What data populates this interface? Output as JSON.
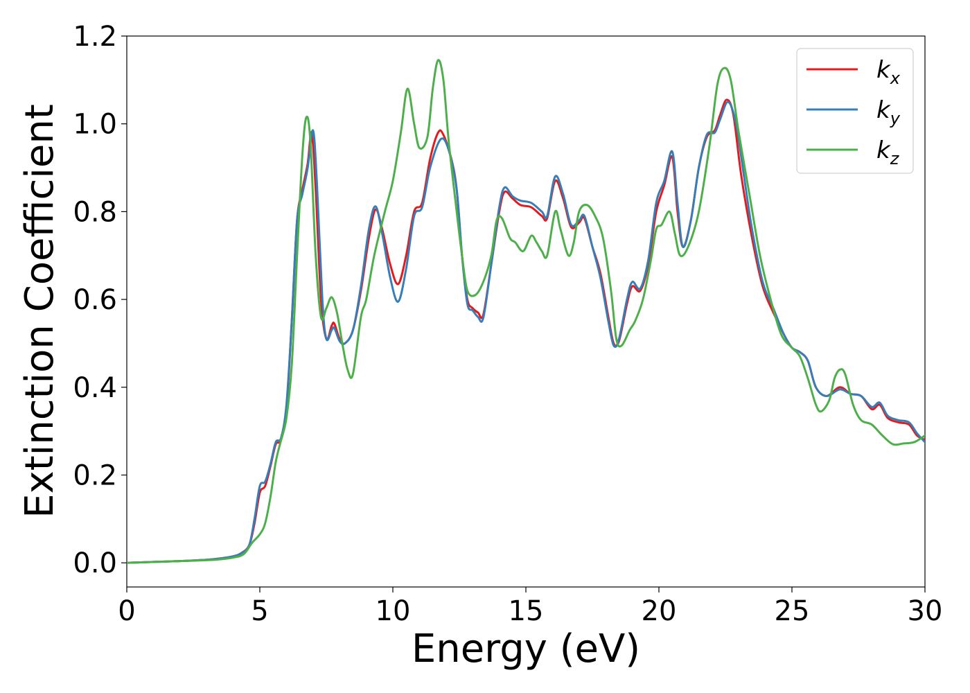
{
  "chart_data": {
    "type": "line",
    "xlabel": "Energy (eV)",
    "ylabel": "Extinction Coefficient",
    "xlim": [
      0,
      30
    ],
    "ylim": [
      -0.055,
      1.2
    ],
    "xticks": [
      0,
      5,
      10,
      15,
      20,
      25,
      30
    ],
    "yticks": [
      0.0,
      0.2,
      0.4,
      0.6,
      0.8,
      1.0,
      1.2
    ],
    "xtick_labels": [
      "0",
      "5",
      "10",
      "15",
      "20",
      "25",
      "30"
    ],
    "ytick_labels": [
      "0.0",
      "0.2",
      "0.4",
      "0.6",
      "0.8",
      "1.0",
      "1.2"
    ],
    "grid": false,
    "legend_position": "top-right",
    "series": [
      {
        "name": "k_x",
        "label_main": "k",
        "label_sub": "x",
        "color": "#e41a1c",
        "points": [
          [
            0,
            0
          ],
          [
            1,
            0.002
          ],
          [
            2,
            0.004
          ],
          [
            3,
            0.007
          ],
          [
            3.5,
            0.01
          ],
          [
            4,
            0.015
          ],
          [
            4.3,
            0.022
          ],
          [
            4.6,
            0.04
          ],
          [
            4.8,
            0.09
          ],
          [
            5.0,
            0.16
          ],
          [
            5.2,
            0.175
          ],
          [
            5.4,
            0.22
          ],
          [
            5.6,
            0.27
          ],
          [
            5.8,
            0.28
          ],
          [
            6.0,
            0.35
          ],
          [
            6.2,
            0.55
          ],
          [
            6.4,
            0.78
          ],
          [
            6.6,
            0.85
          ],
          [
            6.8,
            0.91
          ],
          [
            6.95,
            0.98
          ],
          [
            7.1,
            0.85
          ],
          [
            7.3,
            0.6
          ],
          [
            7.5,
            0.51
          ],
          [
            7.7,
            0.54
          ],
          [
            7.8,
            0.545
          ],
          [
            8.0,
            0.51
          ],
          [
            8.2,
            0.5
          ],
          [
            8.5,
            0.53
          ],
          [
            8.8,
            0.62
          ],
          [
            9.1,
            0.74
          ],
          [
            9.35,
            0.805
          ],
          [
            9.6,
            0.76
          ],
          [
            9.9,
            0.68
          ],
          [
            10.2,
            0.635
          ],
          [
            10.5,
            0.7
          ],
          [
            10.8,
            0.8
          ],
          [
            11.1,
            0.82
          ],
          [
            11.4,
            0.92
          ],
          [
            11.7,
            0.98
          ],
          [
            11.9,
            0.975
          ],
          [
            12.2,
            0.92
          ],
          [
            12.4,
            0.85
          ],
          [
            12.6,
            0.7
          ],
          [
            12.8,
            0.6
          ],
          [
            13.0,
            0.58
          ],
          [
            13.2,
            0.57
          ],
          [
            13.4,
            0.565
          ],
          [
            13.7,
            0.68
          ],
          [
            14.0,
            0.8
          ],
          [
            14.2,
            0.845
          ],
          [
            14.5,
            0.83
          ],
          [
            14.8,
            0.815
          ],
          [
            15.2,
            0.81
          ],
          [
            15.6,
            0.79
          ],
          [
            15.8,
            0.785
          ],
          [
            16.1,
            0.87
          ],
          [
            16.4,
            0.83
          ],
          [
            16.7,
            0.765
          ],
          [
            17.0,
            0.775
          ],
          [
            17.2,
            0.785
          ],
          [
            17.5,
            0.72
          ],
          [
            17.8,
            0.66
          ],
          [
            18.1,
            0.56
          ],
          [
            18.3,
            0.5
          ],
          [
            18.5,
            0.505
          ],
          [
            18.8,
            0.59
          ],
          [
            19.0,
            0.63
          ],
          [
            19.3,
            0.62
          ],
          [
            19.6,
            0.68
          ],
          [
            19.9,
            0.8
          ],
          [
            20.2,
            0.86
          ],
          [
            20.5,
            0.925
          ],
          [
            20.7,
            0.8
          ],
          [
            20.9,
            0.72
          ],
          [
            21.2,
            0.78
          ],
          [
            21.5,
            0.9
          ],
          [
            21.8,
            0.97
          ],
          [
            22.1,
            0.985
          ],
          [
            22.3,
            1.02
          ],
          [
            22.55,
            1.055
          ],
          [
            22.8,
            1.02
          ],
          [
            23.1,
            0.88
          ],
          [
            23.5,
            0.74
          ],
          [
            23.9,
            0.63
          ],
          [
            24.3,
            0.57
          ],
          [
            24.7,
            0.52
          ],
          [
            25.0,
            0.49
          ],
          [
            25.3,
            0.48
          ],
          [
            25.6,
            0.46
          ],
          [
            25.9,
            0.4
          ],
          [
            26.3,
            0.38
          ],
          [
            26.8,
            0.4
          ],
          [
            27.2,
            0.385
          ],
          [
            27.6,
            0.38
          ],
          [
            28.0,
            0.35
          ],
          [
            28.3,
            0.36
          ],
          [
            28.6,
            0.33
          ],
          [
            29.0,
            0.32
          ],
          [
            29.4,
            0.315
          ],
          [
            29.7,
            0.29
          ],
          [
            30.0,
            0.28
          ]
        ]
      },
      {
        "name": "k_y",
        "label_main": "k",
        "label_sub": "y",
        "color": "#377eb8",
        "points": [
          [
            0,
            0
          ],
          [
            1,
            0.002
          ],
          [
            2,
            0.004
          ],
          [
            3,
            0.007
          ],
          [
            3.5,
            0.01
          ],
          [
            4,
            0.015
          ],
          [
            4.3,
            0.022
          ],
          [
            4.6,
            0.04
          ],
          [
            4.8,
            0.1
          ],
          [
            5.0,
            0.175
          ],
          [
            5.2,
            0.185
          ],
          [
            5.4,
            0.225
          ],
          [
            5.6,
            0.275
          ],
          [
            5.8,
            0.285
          ],
          [
            6.0,
            0.36
          ],
          [
            6.2,
            0.55
          ],
          [
            6.4,
            0.78
          ],
          [
            6.6,
            0.84
          ],
          [
            6.8,
            0.9
          ],
          [
            7.0,
            0.985
          ],
          [
            7.15,
            0.86
          ],
          [
            7.35,
            0.6
          ],
          [
            7.5,
            0.51
          ],
          [
            7.7,
            0.53
          ],
          [
            7.8,
            0.535
          ],
          [
            8.0,
            0.505
          ],
          [
            8.2,
            0.5
          ],
          [
            8.5,
            0.53
          ],
          [
            8.8,
            0.63
          ],
          [
            9.1,
            0.76
          ],
          [
            9.35,
            0.812
          ],
          [
            9.6,
            0.75
          ],
          [
            9.9,
            0.65
          ],
          [
            10.2,
            0.595
          ],
          [
            10.5,
            0.67
          ],
          [
            10.8,
            0.79
          ],
          [
            11.1,
            0.81
          ],
          [
            11.4,
            0.9
          ],
          [
            11.8,
            0.965
          ],
          [
            12.1,
            0.94
          ],
          [
            12.4,
            0.85
          ],
          [
            12.6,
            0.7
          ],
          [
            12.8,
            0.59
          ],
          [
            13.0,
            0.575
          ],
          [
            13.2,
            0.56
          ],
          [
            13.4,
            0.558
          ],
          [
            13.7,
            0.68
          ],
          [
            14.0,
            0.81
          ],
          [
            14.2,
            0.855
          ],
          [
            14.5,
            0.835
          ],
          [
            14.8,
            0.825
          ],
          [
            15.2,
            0.82
          ],
          [
            15.6,
            0.8
          ],
          [
            15.8,
            0.79
          ],
          [
            16.1,
            0.88
          ],
          [
            16.4,
            0.84
          ],
          [
            16.7,
            0.77
          ],
          [
            17.0,
            0.78
          ],
          [
            17.2,
            0.79
          ],
          [
            17.5,
            0.72
          ],
          [
            17.8,
            0.65
          ],
          [
            18.1,
            0.55
          ],
          [
            18.3,
            0.495
          ],
          [
            18.5,
            0.51
          ],
          [
            18.8,
            0.6
          ],
          [
            19.0,
            0.64
          ],
          [
            19.3,
            0.625
          ],
          [
            19.6,
            0.69
          ],
          [
            19.9,
            0.82
          ],
          [
            20.2,
            0.87
          ],
          [
            20.5,
            0.937
          ],
          [
            20.7,
            0.82
          ],
          [
            20.9,
            0.72
          ],
          [
            21.2,
            0.78
          ],
          [
            21.5,
            0.9
          ],
          [
            21.8,
            0.975
          ],
          [
            22.1,
            0.98
          ],
          [
            22.3,
            1.01
          ],
          [
            22.6,
            1.05
          ],
          [
            22.9,
            1.0
          ],
          [
            23.2,
            0.88
          ],
          [
            23.5,
            0.76
          ],
          [
            23.9,
            0.64
          ],
          [
            24.3,
            0.58
          ],
          [
            24.7,
            0.52
          ],
          [
            25.0,
            0.49
          ],
          [
            25.3,
            0.48
          ],
          [
            25.6,
            0.46
          ],
          [
            25.9,
            0.4
          ],
          [
            26.3,
            0.38
          ],
          [
            26.8,
            0.395
          ],
          [
            27.2,
            0.385
          ],
          [
            27.6,
            0.38
          ],
          [
            28.0,
            0.355
          ],
          [
            28.3,
            0.365
          ],
          [
            28.6,
            0.335
          ],
          [
            29.0,
            0.325
          ],
          [
            29.4,
            0.32
          ],
          [
            29.7,
            0.295
          ],
          [
            30.0,
            0.275
          ]
        ]
      },
      {
        "name": "k_z",
        "label_main": "k",
        "label_sub": "z",
        "color": "#4daf4a",
        "points": [
          [
            0,
            0
          ],
          [
            1,
            0.002
          ],
          [
            2,
            0.004
          ],
          [
            3,
            0.006
          ],
          [
            3.5,
            0.008
          ],
          [
            4,
            0.012
          ],
          [
            4.4,
            0.02
          ],
          [
            4.7,
            0.045
          ],
          [
            5.0,
            0.065
          ],
          [
            5.2,
            0.09
          ],
          [
            5.4,
            0.15
          ],
          [
            5.6,
            0.23
          ],
          [
            5.8,
            0.28
          ],
          [
            6.0,
            0.33
          ],
          [
            6.2,
            0.45
          ],
          [
            6.4,
            0.7
          ],
          [
            6.6,
            0.93
          ],
          [
            6.75,
            1.015
          ],
          [
            6.9,
            0.96
          ],
          [
            7.1,
            0.7
          ],
          [
            7.3,
            0.56
          ],
          [
            7.5,
            0.58
          ],
          [
            7.7,
            0.605
          ],
          [
            7.9,
            0.57
          ],
          [
            8.1,
            0.5
          ],
          [
            8.3,
            0.44
          ],
          [
            8.5,
            0.43
          ],
          [
            8.8,
            0.56
          ],
          [
            9.0,
            0.6
          ],
          [
            9.3,
            0.7
          ],
          [
            9.7,
            0.8
          ],
          [
            10.0,
            0.87
          ],
          [
            10.3,
            0.98
          ],
          [
            10.55,
            1.08
          ],
          [
            10.8,
            1.0
          ],
          [
            11.0,
            0.945
          ],
          [
            11.3,
            0.97
          ],
          [
            11.5,
            1.08
          ],
          [
            11.7,
            1.145
          ],
          [
            11.9,
            1.1
          ],
          [
            12.1,
            0.96
          ],
          [
            12.4,
            0.8
          ],
          [
            12.6,
            0.7
          ],
          [
            12.8,
            0.62
          ],
          [
            13.1,
            0.61
          ],
          [
            13.4,
            0.64
          ],
          [
            13.7,
            0.7
          ],
          [
            13.9,
            0.78
          ],
          [
            14.1,
            0.785
          ],
          [
            14.4,
            0.74
          ],
          [
            14.6,
            0.73
          ],
          [
            14.9,
            0.71
          ],
          [
            15.2,
            0.745
          ],
          [
            15.4,
            0.73
          ],
          [
            15.6,
            0.71
          ],
          [
            15.8,
            0.7
          ],
          [
            16.1,
            0.8
          ],
          [
            16.3,
            0.76
          ],
          [
            16.6,
            0.7
          ],
          [
            16.8,
            0.73
          ],
          [
            17.0,
            0.8
          ],
          [
            17.3,
            0.815
          ],
          [
            17.6,
            0.79
          ],
          [
            17.9,
            0.74
          ],
          [
            18.2,
            0.62
          ],
          [
            18.4,
            0.51
          ],
          [
            18.6,
            0.495
          ],
          [
            18.9,
            0.53
          ],
          [
            19.1,
            0.55
          ],
          [
            19.4,
            0.6
          ],
          [
            19.7,
            0.69
          ],
          [
            19.9,
            0.76
          ],
          [
            20.1,
            0.77
          ],
          [
            20.4,
            0.8
          ],
          [
            20.6,
            0.75
          ],
          [
            20.8,
            0.7
          ],
          [
            21.1,
            0.72
          ],
          [
            21.5,
            0.8
          ],
          [
            21.9,
            0.95
          ],
          [
            22.2,
            1.09
          ],
          [
            22.45,
            1.127
          ],
          [
            22.7,
            1.1
          ],
          [
            23.0,
            0.98
          ],
          [
            23.4,
            0.84
          ],
          [
            23.8,
            0.7
          ],
          [
            24.2,
            0.6
          ],
          [
            24.6,
            0.52
          ],
          [
            25.0,
            0.49
          ],
          [
            25.3,
            0.47
          ],
          [
            25.6,
            0.42
          ],
          [
            25.9,
            0.36
          ],
          [
            26.1,
            0.345
          ],
          [
            26.4,
            0.37
          ],
          [
            26.6,
            0.42
          ],
          [
            26.8,
            0.44
          ],
          [
            27.0,
            0.43
          ],
          [
            27.3,
            0.36
          ],
          [
            27.6,
            0.325
          ],
          [
            28.0,
            0.315
          ],
          [
            28.4,
            0.29
          ],
          [
            28.8,
            0.27
          ],
          [
            29.2,
            0.272
          ],
          [
            29.6,
            0.275
          ],
          [
            30.0,
            0.29
          ]
        ]
      }
    ]
  }
}
